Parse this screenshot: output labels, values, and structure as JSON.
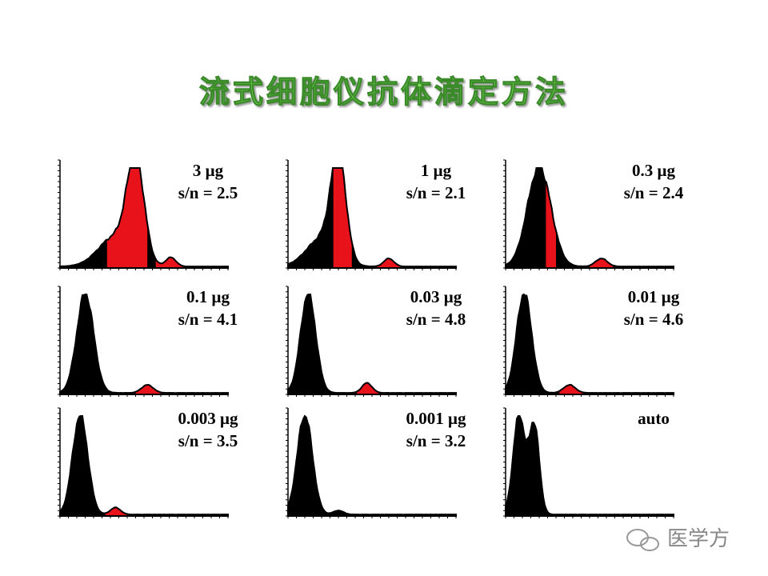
{
  "slide": {
    "title": "流式细胞仪抗体滴定方法",
    "panels": [
      {
        "dose": "3 μg",
        "sn": "s/n = 2.5"
      },
      {
        "dose": "1 μg",
        "sn": "s/n = 2.1"
      },
      {
        "dose": "0.3 μg",
        "sn": "s/n = 2.4"
      },
      {
        "dose": "0.1 μg",
        "sn": "s/n = 4.1"
      },
      {
        "dose": "0.03 μg",
        "sn": "s/n = 4.8"
      },
      {
        "dose": "0.01 μg",
        "sn": "s/n = 4.6"
      },
      {
        "dose": "0.003 μg",
        "sn": "s/n = 3.5"
      },
      {
        "dose": "0.001 μg",
        "sn": "s/n = 3.2"
      },
      {
        "dose": "auto"
      }
    ],
    "watermark": "医学方"
  }
}
